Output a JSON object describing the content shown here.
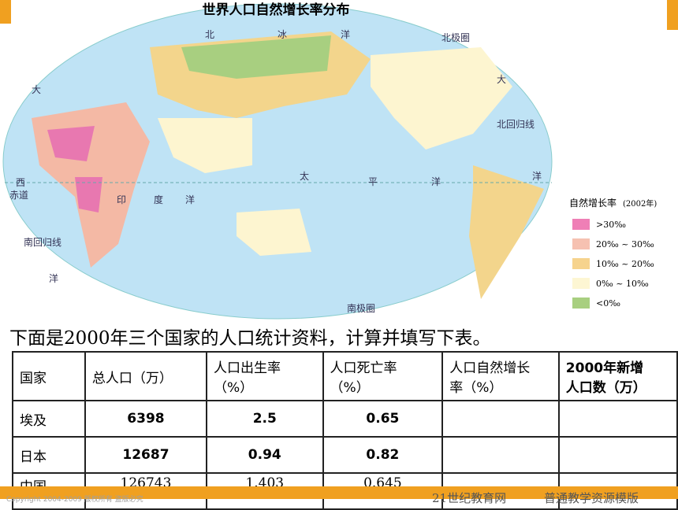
{
  "map": {
    "title": "世界人口自然增长率分布",
    "labels": [
      "北",
      "冰",
      "洋",
      "北极圈",
      "大",
      "大",
      "北回归线",
      "西",
      "赤道",
      "印",
      "度",
      "洋",
      "太",
      "平",
      "洋",
      "洋",
      "南回归线",
      "洋",
      "南极圈"
    ]
  },
  "legend": {
    "title": "自然增长率",
    "year": "(2002年)",
    "items": [
      ">30‰",
      "20‰ ~ 30‰",
      "10‰ ~ 20‰",
      "0‰ ~ 10‰",
      "<0‰"
    ]
  },
  "intro": "下面是2000年三个国家的人口统计资料，计算并填写下表。",
  "table": {
    "header": [
      "国家",
      "总人口（万）",
      "人口出生率\n（%）",
      "人口死亡率\n（%）",
      "人口自然增长\n率（%）",
      "2000年新增\n人口数（万）"
    ],
    "rows": [
      [
        "埃及",
        6398,
        2.5,
        0.65
      ],
      [
        "日本",
        12687,
        0.94,
        0.82
      ],
      [
        "中国",
        126743,
        1.403,
        0.645
      ]
    ]
  },
  "footer": {
    "copyright": "Copyright 2004-2009 版权所有 盗版必究",
    "brand": "21世纪教育网",
    "slogan": "普通教学资源模版"
  }
}
